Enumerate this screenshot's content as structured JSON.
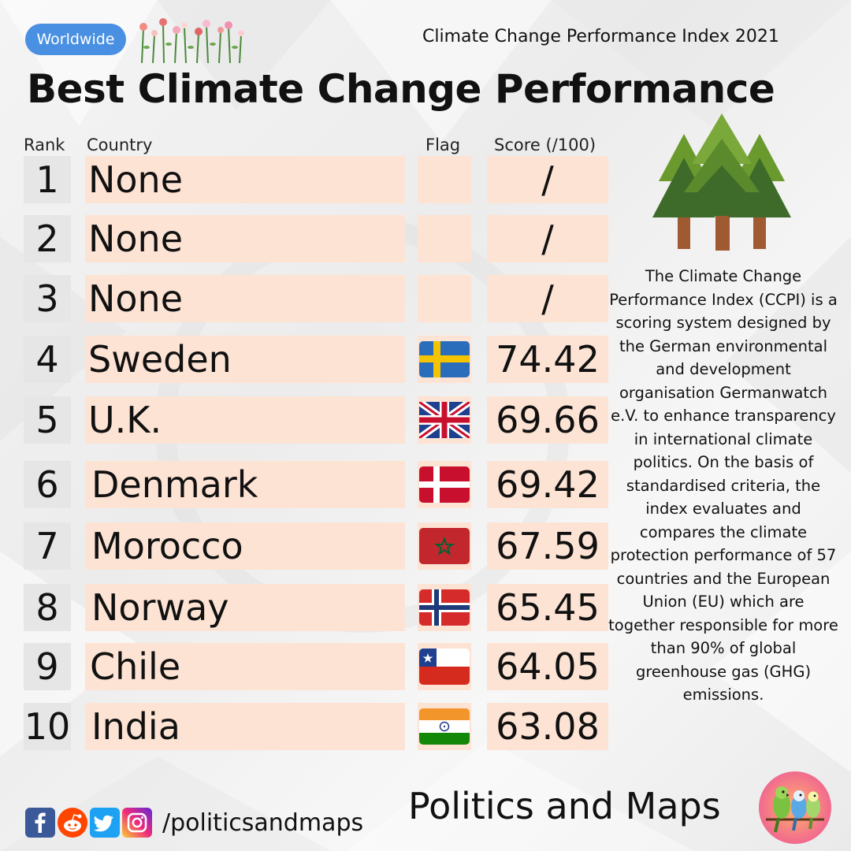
{
  "header": {
    "tag_label": "Worldwide",
    "subtitle": "Climate Change Performance Index 2021",
    "title": "Best Climate Change Performance"
  },
  "table": {
    "columns": {
      "rank": "Rank",
      "country": "Country",
      "flag": "Flag",
      "score": "Score (/100)"
    },
    "rows": [
      {
        "rank": "1",
        "country": "None",
        "flag": "",
        "score": "/"
      },
      {
        "rank": "2",
        "country": "None",
        "flag": "",
        "score": "/"
      },
      {
        "rank": "3",
        "country": "None",
        "flag": "",
        "score": "/"
      },
      {
        "rank": "4",
        "country": "Sweden",
        "flag": "sweden-flag-icon",
        "score": "74.42"
      },
      {
        "rank": "5",
        "country": "U.K.",
        "flag": "uk-flag-icon",
        "score": "69.66"
      },
      {
        "rank": "6",
        "country": "Denmark",
        "flag": "denmark-flag-icon",
        "score": "69.42"
      },
      {
        "rank": "7",
        "country": "Morocco",
        "flag": "morocco-flag-icon",
        "score": "67.59"
      },
      {
        "rank": "8",
        "country": "Norway",
        "flag": "norway-flag-icon",
        "score": "65.45"
      },
      {
        "rank": "9",
        "country": "Chile",
        "flag": "chile-flag-icon",
        "score": "64.05"
      },
      {
        "rank": "10",
        "country": "India",
        "flag": "india-flag-icon",
        "score": "63.08"
      }
    ]
  },
  "description": "The Climate Change Performance Index (CCPI) is a scoring system designed by the German environmental and development organisation Germanwatch e.V. to enhance transparency in international climate politics. On the basis of standardised criteria, the index evaluates and compares the climate protection performance of 57 countries and the European Union (EU) which are together responsible for more than 90% of global greenhouse gas (GHG) emissions.",
  "footer": {
    "social_icons": [
      "facebook-icon",
      "reddit-icon",
      "twitter-icon",
      "instagram-icon"
    ],
    "handle": "/politicsandmaps",
    "brand": "Politics and Maps"
  },
  "colors": {
    "tag": "#4a90e2",
    "cell_peach": "#fde3d4",
    "rank_gray": "#e6e6e6"
  }
}
